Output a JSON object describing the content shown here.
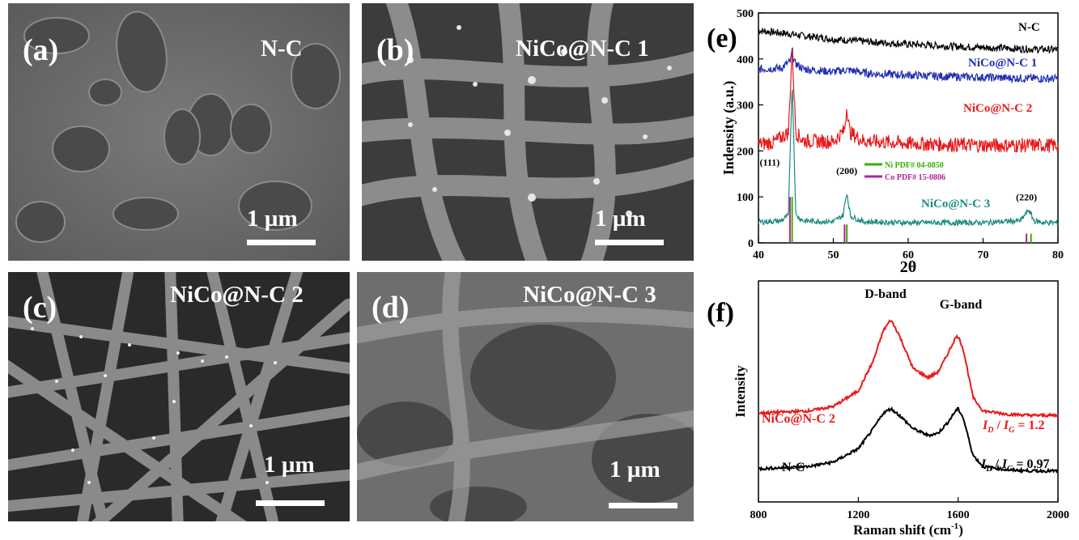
{
  "panels": {
    "a": {
      "label": "(a)",
      "title": "N-C",
      "scale": "1 µm"
    },
    "b": {
      "label": "(b)",
      "title": "NiCo@N-C 1",
      "scale": "1 µm"
    },
    "c": {
      "label": "(c)",
      "title": "NiCo@N-C 2",
      "scale": "1 µm"
    },
    "d": {
      "label": "(d)",
      "title": "NiCo@N-C 3",
      "scale": "1 µm"
    }
  },
  "chart_data": [
    {
      "type": "line",
      "panel_label": "(e)",
      "xlabel": "2θ",
      "ylabel": "Indensity (a.u.)",
      "xlim": [
        40,
        80
      ],
      "ylim": [
        0,
        500
      ],
      "xticks": [
        40,
        50,
        60,
        70,
        80
      ],
      "yticks": [
        0,
        100,
        200,
        300,
        400,
        500
      ],
      "series": [
        {
          "name": "N-C",
          "color": "#000000",
          "baseline": 430,
          "x": [
            40,
            42,
            44,
            46,
            48,
            50,
            55,
            60,
            65,
            70,
            75,
            80
          ],
          "y": [
            462,
            458,
            455,
            450,
            447,
            443,
            437,
            432,
            428,
            425,
            422,
            420
          ],
          "label_color": "#000000"
        },
        {
          "name": "NiCo@N-C 1",
          "color": "#1f2fb0",
          "x": [
            40,
            43,
            44.3,
            44.5,
            44.8,
            46,
            50,
            51.8,
            55,
            60,
            65,
            70,
            75,
            80
          ],
          "y": [
            378,
            380,
            395,
            420,
            392,
            378,
            372,
            376,
            368,
            365,
            362,
            360,
            358,
            357
          ],
          "label_color": "#1f2fb0"
        },
        {
          "name": "NiCo@N-C 2",
          "color": "#e8191b",
          "x": [
            40,
            42,
            44,
            44.5,
            45,
            46,
            50,
            51.5,
            51.8,
            52.2,
            54,
            60,
            65,
            70,
            75,
            80
          ],
          "y": [
            215,
            218,
            240,
            420,
            240,
            222,
            220,
            245,
            298,
            240,
            222,
            216,
            214,
            212,
            212,
            212
          ],
          "label_color": "#e8191b"
        },
        {
          "name": "NiCo@N-C 3",
          "color": "#1a8a80",
          "x": [
            40,
            43,
            44,
            44.5,
            45,
            46,
            50,
            51.3,
            51.8,
            52.3,
            54,
            60,
            70,
            75,
            76.1,
            76.8,
            78,
            80
          ],
          "y": [
            45,
            48,
            60,
            352,
            60,
            48,
            46,
            60,
            110,
            58,
            46,
            44,
            44,
            48,
            72,
            48,
            44,
            44
          ],
          "label_color": "#1a8a80"
        }
      ],
      "reference_lines": [
        {
          "name": "Ni PDF# 04-0850",
          "color": "#38b000",
          "x": [
            44.5,
            51.8,
            76.4
          ],
          "heights": [
            100,
            40,
            20
          ]
        },
        {
          "name": "Co PDF# 15-0806",
          "color": "#b0239a",
          "x": [
            44.2,
            51.5,
            75.8
          ],
          "heights": [
            100,
            40,
            20
          ]
        }
      ],
      "peak_labels": [
        {
          "text": "(111)",
          "x": 41.5,
          "y": 168
        },
        {
          "text": "(200)",
          "x": 51.8,
          "y": 150
        },
        {
          "text": "(220)",
          "x": 75.8,
          "y": 92
        }
      ]
    },
    {
      "type": "line",
      "panel_label": "(f)",
      "xlabel": "Raman shift (cm",
      "xlabel_sup": "-1",
      "xlabel_end": ")",
      "ylabel": "Intensity",
      "xlim": [
        800,
        2000
      ],
      "xticks": [
        800,
        1200,
        1600,
        2000
      ],
      "band_labels": [
        "D-band",
        "G-band"
      ],
      "series": [
        {
          "name": "NiCo@N-C 2",
          "color": "#e8191b",
          "ratio_value": "= 1.2",
          "x": [
            800,
            900,
            1000,
            1100,
            1200,
            1260,
            1300,
            1330,
            1360,
            1420,
            1480,
            1520,
            1560,
            1590,
            1600,
            1620,
            1660,
            1700,
            1800,
            1900,
            2000
          ],
          "y": [
            0.08,
            0.09,
            0.1,
            0.14,
            0.28,
            0.55,
            0.82,
            0.92,
            0.8,
            0.48,
            0.4,
            0.45,
            0.62,
            0.76,
            0.77,
            0.66,
            0.22,
            0.1,
            0.07,
            0.06,
            0.06
          ]
        },
        {
          "name": "N-C",
          "color": "#000000",
          "ratio_value": "= 0.97",
          "x": [
            800,
            900,
            1000,
            1100,
            1200,
            1260,
            1300,
            1330,
            1360,
            1420,
            1480,
            1520,
            1560,
            1590,
            1600,
            1620,
            1660,
            1700,
            1800,
            1900,
            2000
          ],
          "y": [
            -0.42,
            -0.41,
            -0.4,
            -0.36,
            -0.24,
            -0.06,
            0.08,
            0.12,
            0.07,
            -0.06,
            -0.12,
            -0.1,
            0.0,
            0.1,
            0.12,
            0.04,
            -0.3,
            -0.4,
            -0.43,
            -0.44,
            -0.44
          ]
        }
      ]
    }
  ]
}
